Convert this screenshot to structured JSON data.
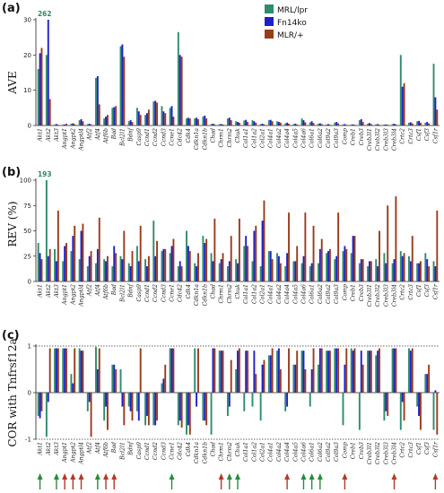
{
  "colors": {
    "mrl": "#2e8b6e",
    "fn14": "#2020c8",
    "mlr": "#9a3b1c",
    "arrow_green": "#2a8a3a",
    "arrow_red": "#b03a2a"
  },
  "legend": {
    "position": "top-right",
    "items": [
      "MRL/lpr",
      "Fn14ko",
      "MLR/+"
    ]
  },
  "genes": [
    "Akt1",
    "Akt2",
    "Akt3",
    "Angpt1",
    "Angpt2",
    "Angptl4",
    "Atf2",
    "Atf4",
    "Atf6b",
    "Bad",
    "Bcl2l1",
    "Bdnf",
    "Casp9",
    "Ccnd1",
    "Ccnd2",
    "Ccnd3",
    "Ccne1",
    "Cdc42",
    "Cdk4",
    "Cdkn1a",
    "Cdkn1b",
    "Chad",
    "Chrm1",
    "Chrm2",
    "Chuk",
    "Col1a1",
    "Col1a2",
    "Col2a1",
    "Col4a1",
    "Col4a2",
    "Col4a4",
    "Col4a5",
    "Col4a6",
    "Col6a1",
    "Col6a2",
    "Col9a2",
    "Col9a3",
    "Comp",
    "Creb1",
    "Creb3",
    "Creb3l1",
    "Creb3l2",
    "Creb3l3",
    "Creb3l4",
    "Crtc2",
    "Crtc3",
    "Csf1",
    "Csf3",
    "Csf1r"
  ],
  "chart_data": [
    {
      "id": "a",
      "panel_label": "(a)",
      "type": "bar",
      "ylabel": "AVE",
      "ylim": [
        0,
        30
      ],
      "yticks": [
        0,
        10,
        20,
        30
      ],
      "grid": false,
      "series": [
        {
          "name": "MRL/lpr",
          "values": [
            16,
            20,
            0.3,
            0.3,
            0.5,
            1.5,
            0.4,
            13.5,
            2,
            5,
            22.5,
            1.2,
            5,
            3,
            6.8,
            5.5,
            5,
            26.5,
            2,
            2,
            2.5,
            0.4,
            0.4,
            2,
            1.2,
            1.4,
            1.5,
            0.4,
            1.5,
            1.2,
            0.6,
            0.4,
            2,
            0.9,
            0.5,
            0.3,
            0.8,
            0.3,
            0.3,
            1.5,
            0.5,
            0.3,
            0.3,
            0.4,
            20,
            0.8,
            1.2,
            0.8,
            17.5
          ]
        },
        {
          "name": "Fn14ko",
          "values": [
            20.5,
            30,
            0.4,
            0.3,
            0.6,
            1.8,
            0.5,
            14,
            2.5,
            5.2,
            23,
            1.5,
            4,
            3.5,
            7,
            4,
            5.5,
            20,
            2.2,
            2.2,
            2.8,
            0.5,
            0.4,
            2.2,
            1,
            1.6,
            1.2,
            0.5,
            1.6,
            1,
            0.8,
            0.5,
            1.5,
            1.2,
            0.6,
            0.4,
            1,
            0.4,
            0.3,
            1.8,
            0.7,
            0.4,
            0.3,
            0.5,
            11,
            0.9,
            1.3,
            1,
            8
          ]
        },
        {
          "name": "MLR/+",
          "values": [
            22,
            7.5,
            0.2,
            0.5,
            0.4,
            1.2,
            0.3,
            6,
            3,
            5.5,
            19.5,
            1,
            3,
            4.5,
            6.5,
            3.5,
            2.5,
            19.5,
            2,
            1.8,
            2,
            0.3,
            0.3,
            1.5,
            0.8,
            1,
            0.8,
            0.3,
            1.2,
            0.8,
            0.5,
            0.3,
            0.9,
            0.7,
            0.4,
            0.2,
            0.6,
            0.2,
            0.2,
            1,
            0.4,
            0.2,
            0.2,
            0.3,
            12,
            0.6,
            0.8,
            0.6,
            4.5
          ]
        }
      ],
      "annotations": [
        {
          "gene": "Akt2",
          "text": "262"
        }
      ]
    },
    {
      "id": "b",
      "panel_label": "(b)",
      "type": "bar",
      "ylabel": "REV (%)",
      "ylim": [
        0,
        100
      ],
      "yticks": [
        0,
        25,
        50,
        75,
        100
      ],
      "grid": false,
      "series": [
        {
          "name": "MRL/lpr",
          "values": [
            38,
            100,
            32,
            20,
            30,
            22,
            15,
            18,
            22,
            15,
            25,
            18,
            35,
            22,
            60,
            30,
            28,
            15,
            50,
            18,
            45,
            28,
            18,
            15,
            22,
            35,
            20,
            15,
            30,
            28,
            15,
            20,
            18,
            15,
            18,
            28,
            22,
            30,
            28,
            18,
            15,
            22,
            28,
            18,
            30,
            25,
            18,
            28,
            20
          ]
        },
        {
          "name": "Fn14ko",
          "values": [
            28,
            25,
            20,
            35,
            45,
            50,
            25,
            32,
            20,
            35,
            22,
            15,
            20,
            15,
            25,
            32,
            35,
            20,
            35,
            15,
            38,
            20,
            22,
            20,
            18,
            45,
            50,
            60,
            30,
            25,
            28,
            20,
            25,
            18,
            32,
            30,
            25,
            35,
            45,
            22,
            20,
            15,
            18,
            22,
            25,
            20,
            18,
            22,
            15
          ]
        },
        {
          "name": "MLR/+",
          "values": [
            22,
            32,
            70,
            38,
            55,
            57,
            30,
            63,
            25,
            28,
            50,
            30,
            55,
            25,
            40,
            32,
            42,
            15,
            30,
            28,
            42,
            62,
            28,
            45,
            62,
            35,
            55,
            80,
            22,
            18,
            68,
            35,
            68,
            55,
            42,
            32,
            68,
            32,
            45,
            22,
            20,
            50,
            75,
            84,
            28,
            45,
            20,
            15,
            70
          ]
        }
      ],
      "annotations": [
        {
          "gene": "Akt2",
          "text": "193"
        }
      ]
    },
    {
      "id": "c",
      "panel_label": "(c)",
      "type": "bar",
      "ylabel": "COR with Tnfrsf12a",
      "ylim": [
        -1,
        1
      ],
      "yticks": [
        -1,
        0,
        1
      ],
      "grid": false,
      "reference_lines": [
        -1,
        1
      ],
      "series": [
        {
          "name": "MRL/lpr",
          "values": [
            -0.5,
            -0.95,
            0.95,
            0.95,
            0.4,
            0.95,
            -0.4,
            0.98,
            -0.6,
            0.6,
            0.5,
            -0.3,
            -0.4,
            -0.7,
            -0.7,
            0.2,
            0.95,
            -0.7,
            -0.9,
            0.95,
            -0.6,
            -0.9,
            0.9,
            -0.5,
            0.5,
            -0.4,
            -0.3,
            -0.6,
            0.8,
            0.9,
            -0.4,
            0.6,
            0.9,
            -0.3,
            0.6,
            0.9,
            0.95,
            -0.7,
            0.95,
            -0.8,
            0.9,
            0.8,
            -0.6,
            0.95,
            -0.8,
            0.95,
            -0.3,
            0.4,
            -0.8
          ]
        },
        {
          "name": "Fn14ko",
          "values": [
            -0.55,
            -0.2,
            0.95,
            0.95,
            0.2,
            0.9,
            -0.2,
            0.5,
            -0.3,
            0.6,
            -0.3,
            -0.4,
            -0.6,
            -0.5,
            -0.7,
            0.3,
            0.95,
            -0.6,
            -0.7,
            -0.3,
            -0.6,
            0.95,
            0.9,
            -0.3,
            0.9,
            0.9,
            0.9,
            0.6,
            0.8,
            0.95,
            -0.3,
            0.6,
            0.9,
            0.5,
            0.95,
            0.9,
            0.95,
            0.6,
            0.9,
            0.9,
            0.9,
            0.9,
            -0.4,
            0.95,
            -0.2,
            0.9,
            -0.5,
            0.4,
            0.05
          ]
        },
        {
          "name": "MLR/+",
          "values": [
            -0.4,
            0.95,
            0.95,
            0.95,
            0.95,
            0.9,
            -0.95,
            0.95,
            -0.8,
            0.5,
            -0.7,
            -0.6,
            0.95,
            -0.7,
            -0.6,
            0.6,
            0.95,
            -0.75,
            -0.9,
            0.95,
            -0.7,
            0.95,
            0.9,
            0.7,
            0.95,
            0.9,
            0.4,
            0.7,
            0.95,
            0.5,
            0.95,
            0.9,
            0.5,
            0.95,
            0.95,
            0.9,
            0.95,
            0.95,
            0.95,
            0.6,
            0.9,
            0.95,
            -0.5,
            0.95,
            -0.6,
            0.95,
            -0.8,
            0.6,
            -0.9
          ]
        }
      ]
    }
  ],
  "arrows": {
    "green_genes": [
      "Akt1",
      "Akt3",
      "Atf4",
      "Ccne1",
      "Chrm2",
      "Chuk",
      "Col4a6",
      "Col6a1",
      "Col6a2"
    ],
    "red_genes": [
      "Angpt1",
      "Angpt2",
      "Angptl4",
      "Atf6b",
      "Bad",
      "Chrm1",
      "Col4a4",
      "Comp",
      "Creb3l4",
      "Csf1r"
    ]
  }
}
